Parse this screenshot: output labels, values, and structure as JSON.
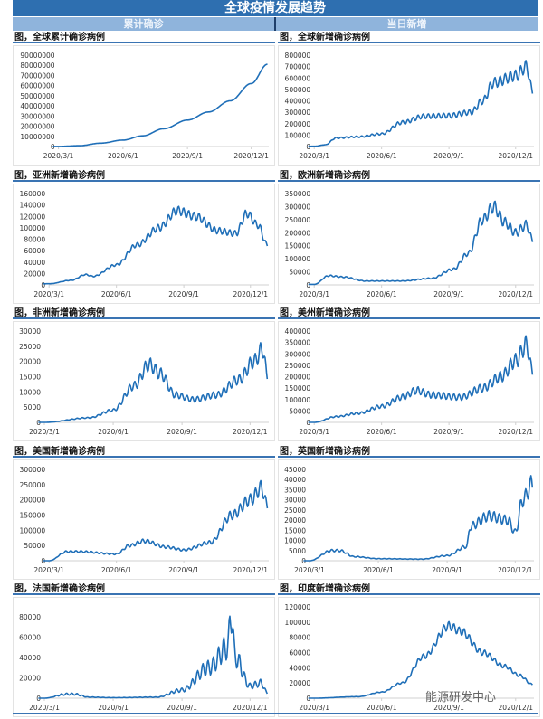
{
  "header": {
    "title": "全球疫情发展趋势",
    "left_section": "累计确诊",
    "right_section": "当日新增"
  },
  "watermark": "能源研发中心",
  "colors": {
    "line": "#1f6fb8",
    "header": "#2e6fb0",
    "subheader": "#8fb4dc"
  },
  "chart_data": [
    {
      "type": "line",
      "title": "图，全球累计确诊病例",
      "x_ticks": [
        "2020/3/1",
        "2020/6/1",
        "2020/9/1",
        "2020/12/1"
      ],
      "ylim": [
        0,
        90000000
      ],
      "ystep": 10000000,
      "weekly_oscillation": 0.0,
      "days_since_2020_3_1": [
        0,
        30,
        60,
        92,
        120,
        150,
        184,
        214,
        245,
        275,
        298
      ],
      "values": [
        90000,
        800000,
        3300000,
        6300000,
        10500000,
        17500000,
        26000000,
        34000000,
        45000000,
        62000000,
        81000000
      ]
    },
    {
      "type": "line",
      "title": "图，全球新增确诊病例",
      "x_ticks": [
        "2020/3/1",
        "2020/6/1",
        "2020/9/1",
        "2020/12/1"
      ],
      "ylim": [
        0,
        800000
      ],
      "ystep": 100000,
      "weekly_oscillation": 0.08,
      "days_since_2020_3_1": [
        0,
        15,
        30,
        60,
        92,
        120,
        150,
        184,
        214,
        230,
        245,
        275,
        290,
        298
      ],
      "values": [
        2000,
        15000,
        75000,
        85000,
        110000,
        210000,
        265000,
        270000,
        300000,
        400000,
        560000,
        620000,
        700000,
        480000
      ]
    },
    {
      "type": "line",
      "title": "图，亚洲新增确诊病例",
      "x_ticks": [
        "2020/3/1",
        "2020/6/1",
        "2020/9/1",
        "2020/12/1"
      ],
      "ylim": [
        0,
        160000
      ],
      "ystep": 20000,
      "weekly_oscillation": 0.06,
      "days_since_2020_3_1": [
        0,
        30,
        50,
        60,
        92,
        120,
        150,
        175,
        200,
        230,
        255,
        270,
        285,
        298
      ],
      "values": [
        2000,
        8000,
        18000,
        15000,
        35000,
        70000,
        100000,
        130000,
        120000,
        95000,
        90000,
        125000,
        105000,
        70000
      ]
    },
    {
      "type": "line",
      "title": "图，欧洲新增确诊病例",
      "x_ticks": [
        "2020/3/1",
        "2020/6/1",
        "2020/9/1",
        "2020/12/1"
      ],
      "ylim": [
        0,
        350000
      ],
      "ystep": 50000,
      "weekly_oscillation": 0.08,
      "days_since_2020_3_1": [
        0,
        20,
        40,
        70,
        120,
        160,
        190,
        210,
        230,
        245,
        260,
        275,
        290,
        298
      ],
      "values": [
        2000,
        35000,
        30000,
        15000,
        15000,
        25000,
        60000,
        120000,
        250000,
        300000,
        240000,
        200000,
        230000,
        170000
      ]
    },
    {
      "type": "line",
      "title": "图，非洲新增确诊病例",
      "x_ticks": [
        "2020/3/1",
        "2020/6/1",
        "2020/9/1",
        "2020/12/1"
      ],
      "ylim": [
        0,
        30000
      ],
      "ystep": 5000,
      "weekly_oscillation": 0.12,
      "days_since_2020_3_1": [
        0,
        60,
        92,
        120,
        140,
        155,
        175,
        200,
        230,
        260,
        280,
        292,
        298
      ],
      "values": [
        0,
        1500,
        4000,
        12000,
        19000,
        16000,
        9000,
        7500,
        9000,
        14000,
        20000,
        24000,
        15000
      ]
    },
    {
      "type": "line",
      "title": "图，美州新增确诊病例",
      "x_ticks": [
        "2020/3/1",
        "2020/6/1",
        "2020/9/1",
        "2020/12/1"
      ],
      "ylim": [
        0,
        400000
      ],
      "ystep": 50000,
      "weekly_oscillation": 0.12,
      "days_since_2020_3_1": [
        0,
        30,
        60,
        92,
        120,
        140,
        160,
        200,
        230,
        255,
        275,
        290,
        298
      ],
      "values": [
        0,
        25000,
        40000,
        70000,
        110000,
        140000,
        120000,
        110000,
        150000,
        200000,
        270000,
        340000,
        220000
      ]
    },
    {
      "type": "line",
      "title": "图，美国新增确诊病例",
      "x_ticks": [
        "2020/3/1",
        "2020/6/1",
        "2020/9/1",
        "2020/12/1"
      ],
      "ylim": [
        0,
        300000
      ],
      "ystep": 50000,
      "weekly_oscillation": 0.1,
      "days_since_2020_3_1": [
        0,
        25,
        40,
        92,
        110,
        130,
        160,
        184,
        220,
        250,
        275,
        290,
        298
      ],
      "values": [
        0,
        30000,
        30000,
        22000,
        50000,
        65000,
        45000,
        35000,
        60000,
        150000,
        200000,
        240000,
        180000
      ]
    },
    {
      "type": "line",
      "title": "图，英国新增确诊病例",
      "x_ticks": [
        "2020/3/1",
        "2020/6/1",
        "2020/9/1",
        "2020/12/1"
      ],
      "ylim": [
        0,
        45000
      ],
      "ystep": 5000,
      "weekly_oscillation": 0.12,
      "days_since_2020_3_1": [
        0,
        30,
        40,
        60,
        92,
        150,
        184,
        210,
        215,
        240,
        265,
        275,
        285,
        298
      ],
      "values": [
        0,
        5000,
        5000,
        2000,
        1000,
        800,
        2500,
        7000,
        17000,
        22000,
        20000,
        14000,
        30000,
        38000
      ]
    },
    {
      "type": "line",
      "title": "图，法国新增确诊病例",
      "x_ticks": [
        "2020/3/1",
        "2020/6/1",
        "2020/9/1",
        "2020/12/1"
      ],
      "ylim": [
        0,
        90000
      ],
      "ystep": 20000,
      "weekly_oscillation": 0.25,
      "days_since_2020_3_1": [
        0,
        30,
        40,
        60,
        92,
        150,
        184,
        220,
        245,
        250,
        255,
        275,
        290,
        298
      ],
      "values": [
        0,
        4000,
        4000,
        1000,
        500,
        1000,
        8000,
        30000,
        50000,
        85000,
        40000,
        12000,
        15000,
        5000
      ]
    },
    {
      "type": "line",
      "title": "图，印度新增确诊病例",
      "x_ticks": [
        "2020/3/1",
        "2020/6/1",
        "2020/9/1",
        "2020/12/1"
      ],
      "ylim": [
        0,
        120000
      ],
      "ystep": 20000,
      "weekly_oscillation": 0.06,
      "days_since_2020_3_1": [
        0,
        60,
        92,
        120,
        150,
        184,
        200,
        230,
        260,
        280,
        298
      ],
      "values": [
        0,
        2000,
        8000,
        20000,
        55000,
        95000,
        88000,
        60000,
        42000,
        30000,
        18000
      ]
    }
  ]
}
